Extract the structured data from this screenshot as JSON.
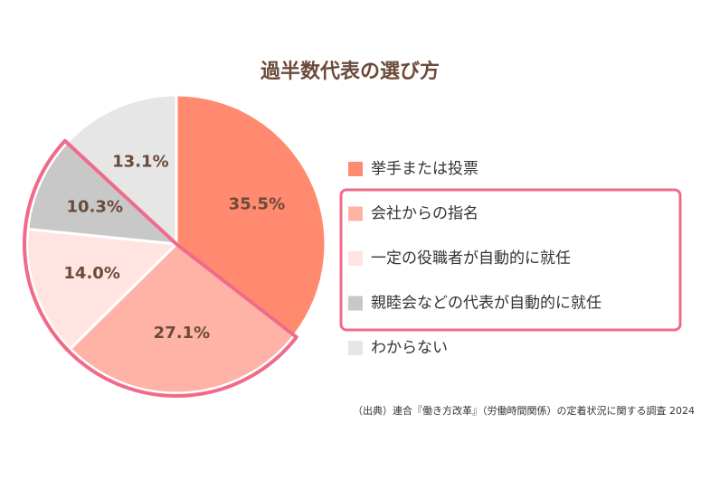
{
  "chart_data": {
    "type": "pie",
    "title": "過半数代表の選び方",
    "categories": [
      "挙手または投票",
      "会社からの指名",
      "一定の役職者が自動的に就任",
      "親睦会などの代表が自動的に就任",
      "わからない"
    ],
    "values": [
      35.5,
      27.1,
      14.0,
      10.3,
      13.1
    ],
    "value_labels": [
      "35.5%",
      "27.1%",
      "14.0%",
      "10.3%",
      "13.1%"
    ],
    "colors": [
      "#ff8a70",
      "#ffb3a6",
      "#ffe4e1",
      "#c8c8c8",
      "#e6e6e6"
    ],
    "source": "（出典）連合『働き方改革』（労働時間関係）の定着状況に関する調査 2024"
  }
}
